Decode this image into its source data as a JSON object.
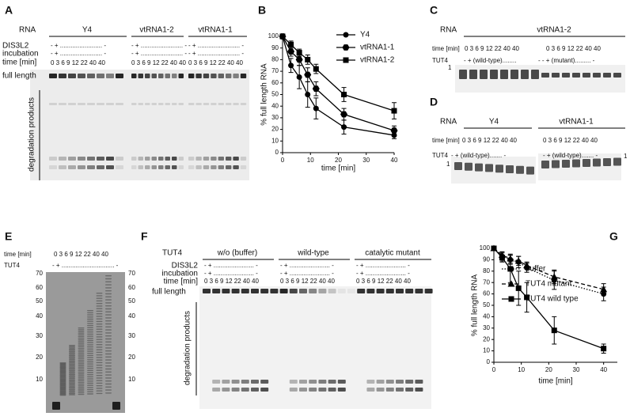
{
  "panel_a": {
    "letter": "A",
    "rna_label": "RNA",
    "groups": [
      "Y4",
      "vtRNA1-2",
      "vtRNA1-1"
    ],
    "row_labels": [
      "DIS3L2",
      "incubation",
      "time [min]"
    ],
    "treatment": "- + ........................ -",
    "times": "0 3 6 9 12 22 40 40",
    "full_length": "full length",
    "degradation": "degradation products"
  },
  "panel_c": {
    "letter": "C",
    "rna_label": "RNA",
    "group": "vtRNA1-2",
    "time_label": "time [min]",
    "times": "0 3 6 9 12 22 40 40",
    "tut4_label": "TUT4",
    "tut4_wt": "- + (wild-type)........",
    "tut4_mut": "- - + (mutant).........  -",
    "marker": "1"
  },
  "panel_d": {
    "letter": "D",
    "rna_label": "RNA",
    "groups": [
      "Y4",
      "vtRNA1-1"
    ],
    "time_label": "time [min]",
    "times": "0 3 6 9 12 22 40 40",
    "tut4_label": "TUT4",
    "tut4_a": "- + (wild-type).......  -",
    "tut4_b": "- + (wild-type)....... -",
    "marker": "1"
  },
  "panel_e": {
    "letter": "E",
    "time_label": "time [min]",
    "times": "0  3  6  9 12 22 40 40",
    "tut4_label": "TUT4",
    "tut4": "- + .............................. -",
    "ladder": [
      70,
      60,
      50,
      40,
      30,
      20,
      10
    ]
  },
  "panel_f": {
    "letter": "F",
    "tut4_label": "TUT4",
    "groups": [
      "w/o (buffer)",
      "wild-type",
      "catalytic mutant"
    ],
    "row_labels": [
      "DIS3L2",
      "incubation",
      "time [min]"
    ],
    "treatment": "- + ....................... -",
    "times": "0 3 6 9 12 22 40 40",
    "full_length": "full length",
    "degradation": "degradation products"
  },
  "panel_b_letter": "B",
  "panel_g_letter": "G",
  "chart_data": [
    {
      "type": "line",
      "x_label": "time [min]",
      "y_label": "% full length RNA",
      "x": [
        0,
        3,
        6,
        9,
        12,
        22,
        40
      ],
      "xlim": [
        0,
        40
      ],
      "xticks": [
        0,
        10,
        20,
        30,
        40
      ],
      "ylim": [
        0,
        100
      ],
      "yticks": [
        0,
        10,
        20,
        30,
        40,
        50,
        60,
        70,
        80,
        90,
        100
      ],
      "series": [
        {
          "name": "Y4",
          "color": "#000000",
          "marker": "circle",
          "dash": "solid",
          "values": [
            100,
            75,
            65,
            50,
            38,
            22,
            15
          ],
          "errors": [
            2,
            6,
            10,
            11,
            9,
            6,
            3
          ]
        },
        {
          "name": "vtRNA1-1",
          "color": "#000000",
          "marker": "hexagon",
          "dash": "solid",
          "values": [
            100,
            87,
            80,
            67,
            55,
            33,
            19
          ],
          "errors": [
            2,
            4,
            5,
            6,
            6,
            5,
            4
          ]
        },
        {
          "name": "vtRNA1-2",
          "color": "#000000",
          "marker": "square",
          "dash": "solid",
          "values": [
            100,
            93,
            86,
            80,
            72,
            50,
            36
          ],
          "errors": [
            2,
            3,
            3,
            4,
            4,
            6,
            7
          ]
        }
      ]
    },
    {
      "type": "line",
      "x_label": "time [min]",
      "y_label": "% full length RNA",
      "x": [
        0,
        3,
        6,
        9,
        12,
        22,
        40
      ],
      "xlim": [
        0,
        45
      ],
      "xticks": [
        0,
        10,
        20,
        30,
        40
      ],
      "ylim": [
        0,
        100
      ],
      "yticks": [
        0,
        10,
        20,
        30,
        40,
        50,
        60,
        70,
        80,
        90,
        100
      ],
      "series": [
        {
          "name": "buffer",
          "color": "#000000",
          "marker": "circle",
          "dash": "dotted",
          "values": [
            100,
            93,
            90,
            88,
            83,
            72,
            60
          ],
          "errors": [
            2,
            4,
            4,
            5,
            4,
            8,
            6
          ]
        },
        {
          "name": "TUT4 mutant",
          "color": "#000000",
          "marker": "triangle",
          "dash": "dashed",
          "values": [
            100,
            94,
            91,
            89,
            85,
            75,
            64
          ],
          "errors": [
            2,
            3,
            4,
            4,
            3,
            6,
            5
          ]
        },
        {
          "name": "TUT4 wild type",
          "color": "#000000",
          "marker": "square",
          "dash": "solid",
          "values": [
            100,
            92,
            82,
            65,
            57,
            28,
            12
          ],
          "errors": [
            2,
            4,
            12,
            15,
            13,
            12,
            4
          ]
        }
      ]
    }
  ]
}
